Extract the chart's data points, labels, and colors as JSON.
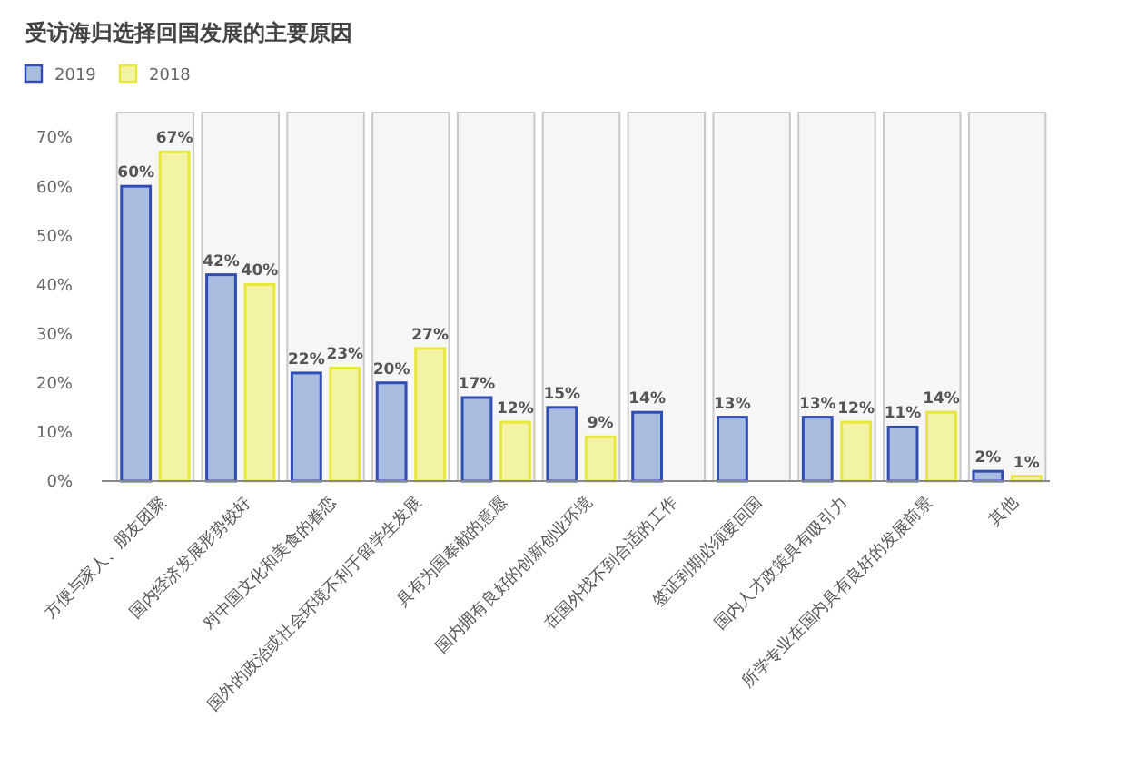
{
  "chart_data": {
    "type": "bar",
    "title": "受访海归选择回国发展的主要原因",
    "categories": [
      "方便与家人、朋友团聚",
      "国内经济发展形势较好",
      "对中国文化和美食的眷恋",
      "国外的政治或社会环境不利于留学生发展",
      "具有为国奉献的意愿",
      "国内拥有良好的创新创业环境",
      "在国外找不到合适的工作",
      "签证到期必须要回国",
      "国内人才政策具有吸引力",
      "所学专业在国内具有良好的发展前景",
      "其他"
    ],
    "series": [
      {
        "name": "2019",
        "color": "#a9bde0",
        "values": [
          60,
          42,
          22,
          20,
          17,
          15,
          14,
          13,
          13,
          11,
          2
        ],
        "value_labels": [
          "60%",
          "42%",
          "22%",
          "20%",
          "17%",
          "15%",
          "14%",
          "13%",
          "13%",
          "11%",
          "2%"
        ]
      },
      {
        "name": "2018",
        "color": "#f3f3a6",
        "values": [
          67,
          40,
          23,
          27,
          12,
          9,
          null,
          null,
          12,
          14,
          1
        ],
        "value_labels": [
          "67%",
          "40%",
          "23%",
          "27%",
          "12%",
          "9%",
          null,
          null,
          "12%",
          "14%",
          "1%"
        ]
      }
    ],
    "ylim": [
      0,
      75
    ],
    "yticks": [
      {
        "value": 0,
        "label": "0%"
      },
      {
        "value": 10,
        "label": "10%"
      },
      {
        "value": 20,
        "label": "20%"
      },
      {
        "value": 30,
        "label": "30%"
      },
      {
        "value": 40,
        "label": "40%"
      },
      {
        "value": 50,
        "label": "50%"
      },
      {
        "value": 60,
        "label": "60%"
      },
      {
        "value": 70,
        "label": "70%"
      }
    ],
    "bands": [
      {
        "axis": "x",
        "from": "方便与家人、朋友团聚",
        "to": "方便与家人、朋友团聚",
        "color": "#f6f6f6"
      },
      {
        "axis": "x",
        "from": "国内经济发展形势较好",
        "to": "国内经济发展形势较好",
        "color": "#f6f6f6"
      },
      {
        "axis": "x",
        "from": "对中国文化和美食的眷恋",
        "to": "对中国文化和美食的眷恋",
        "color": "#f6f6f6"
      },
      {
        "axis": "x",
        "from": "国外的政治或社会环境不利于留学生发展",
        "to": "国外的政治或社会环境不利于留学生发展",
        "color": "#f6f6f6"
      },
      {
        "axis": "x",
        "from": "具有为国奉献的意愿",
        "to": "具有为国奉献的意愿",
        "color": "#f6f6f6"
      },
      {
        "axis": "x",
        "from": "国内拥有良好的创新创业环境",
        "to": "国内拥有良好的创新创业环境",
        "color": "#f6f6f6"
      },
      {
        "axis": "x",
        "from": "在国外找不到合适的工作",
        "to": "在国外找不到合适的工作",
        "color": "#f6f6f6"
      },
      {
        "axis": "x",
        "from": "签证到期必须要回国",
        "to": "签证到期必须要回国",
        "color": "#f6f6f6"
      },
      {
        "axis": "x",
        "from": "国内人才政策具有吸引力",
        "to": "国内人才政策具有吸引力",
        "color": "#f6f6f6"
      },
      {
        "axis": "x",
        "from": "所学专业在国内具有良好的发展前景",
        "to": "所学专业在国内具有良好的发展前景",
        "color": "#f6f6f6"
      },
      {
        "axis": "x",
        "from": "其他",
        "to": "其他",
        "color": "#f6f6f6"
      }
    ],
    "grid": false,
    "legend": "top left"
  }
}
